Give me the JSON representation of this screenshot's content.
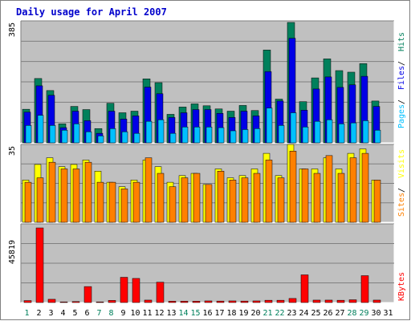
{
  "title": "Daily usage for April 2007",
  "colors": {
    "background": "#ffffff",
    "frame_light": "#ffffff",
    "frame_dark": "#808080",
    "panel_bg": "#c0c0c0",
    "grid": "#808080",
    "title": "#0000cc",
    "hits": "#00805c",
    "files": "#0000e6",
    "pages": "#00c0ff",
    "visits": "#ffff00",
    "sites": "#ff8000",
    "kbytes": "#ff0000",
    "day_normal": "#000000",
    "day_weekend": "#00805c"
  },
  "chart_data": [
    {
      "type": "bar",
      "panel": "top",
      "ymax_label": "385",
      "ylim": [
        0,
        385
      ],
      "legend": {
        "pages": "Pages",
        "files": "Files",
        "hits": "Hits",
        "sep": " / "
      },
      "categories": [
        "1",
        "2",
        "3",
        "4",
        "5",
        "6",
        "7",
        "8",
        "9",
        "10",
        "11",
        "12",
        "13",
        "14",
        "15",
        "16",
        "17",
        "18",
        "19",
        "20",
        "21",
        "22",
        "23",
        "24",
        "25",
        "26",
        "27",
        "28",
        "29",
        "30",
        "31"
      ],
      "series": [
        {
          "name": "Hits",
          "values": [
            106,
            203,
            165,
            60,
            115,
            105,
            45,
            125,
            95,
            100,
            202,
            190,
            90,
            113,
            123,
            117,
            107,
            100,
            118,
            102,
            293,
            138,
            380,
            130,
            205,
            265,
            228,
            223,
            250,
            132,
            0
          ]
        },
        {
          "name": "Files",
          "values": [
            97,
            180,
            150,
            48,
            100,
            70,
            30,
            100,
            75,
            85,
            176,
            155,
            80,
            95,
            105,
            105,
            93,
            80,
            100,
            85,
            225,
            132,
            330,
            103,
            170,
            208,
            175,
            183,
            210,
            115,
            0
          ]
        },
        {
          "name": "Pages",
          "values": [
            55,
            87,
            55,
            40,
            60,
            35,
            22,
            45,
            35,
            30,
            68,
            73,
            30,
            50,
            50,
            50,
            48,
            38,
            42,
            45,
            110,
            55,
            95,
            50,
            68,
            73,
            60,
            63,
            70,
            40,
            0
          ]
        }
      ]
    },
    {
      "type": "bar",
      "panel": "middle",
      "ymax_label": "35",
      "ylim": [
        0,
        35
      ],
      "legend": {
        "sites": "Sites",
        "visits": "Visits",
        "sep": " / "
      },
      "categories": [
        "1",
        "2",
        "3",
        "4",
        "5",
        "6",
        "7",
        "8",
        "9",
        "10",
        "11",
        "12",
        "13",
        "14",
        "15",
        "16",
        "17",
        "18",
        "19",
        "20",
        "21",
        "22",
        "23",
        "24",
        "25",
        "26",
        "27",
        "28",
        "29",
        "30",
        "31"
      ],
      "series": [
        {
          "name": "Visits",
          "values": [
            19,
            26,
            29,
            25,
            26,
            28,
            23,
            18,
            16,
            19,
            28,
            25,
            18,
            21,
            22,
            17,
            24,
            20,
            21,
            24,
            31,
            21,
            35,
            24,
            24,
            29,
            24,
            31,
            33,
            19,
            0
          ]
        },
        {
          "name": "Sites",
          "values": [
            18,
            20,
            27,
            24,
            24,
            27,
            18,
            18,
            15,
            18,
            29,
            22,
            16,
            20,
            22,
            17,
            23,
            19,
            20,
            22,
            28,
            20,
            32,
            24,
            22,
            30,
            22,
            29,
            31,
            19,
            0
          ]
        }
      ]
    },
    {
      "type": "bar",
      "panel": "bottom",
      "ymax_label": "45819",
      "ylim": [
        0,
        45819
      ],
      "legend": {
        "kbytes": "KBytes"
      },
      "categories": [
        "1",
        "2",
        "3",
        "4",
        "5",
        "6",
        "7",
        "8",
        "9",
        "10",
        "11",
        "12",
        "13",
        "14",
        "15",
        "16",
        "17",
        "18",
        "19",
        "20",
        "21",
        "22",
        "23",
        "24",
        "25",
        "26",
        "27",
        "28",
        "29",
        "30",
        "31"
      ],
      "weekend_days": [
        "1",
        "7",
        "8",
        "14",
        "15",
        "21",
        "22",
        "28",
        "29"
      ],
      "series": [
        {
          "name": "KBytes",
          "values": [
            1200,
            45819,
            2000,
            400,
            600,
            9800,
            400,
            1300,
            15500,
            14800,
            1500,
            12500,
            800,
            800,
            800,
            1000,
            900,
            1000,
            900,
            1000,
            1400,
            1400,
            2500,
            17000,
            1500,
            1500,
            1400,
            1700,
            16500,
            1500,
            0
          ]
        }
      ]
    }
  ]
}
